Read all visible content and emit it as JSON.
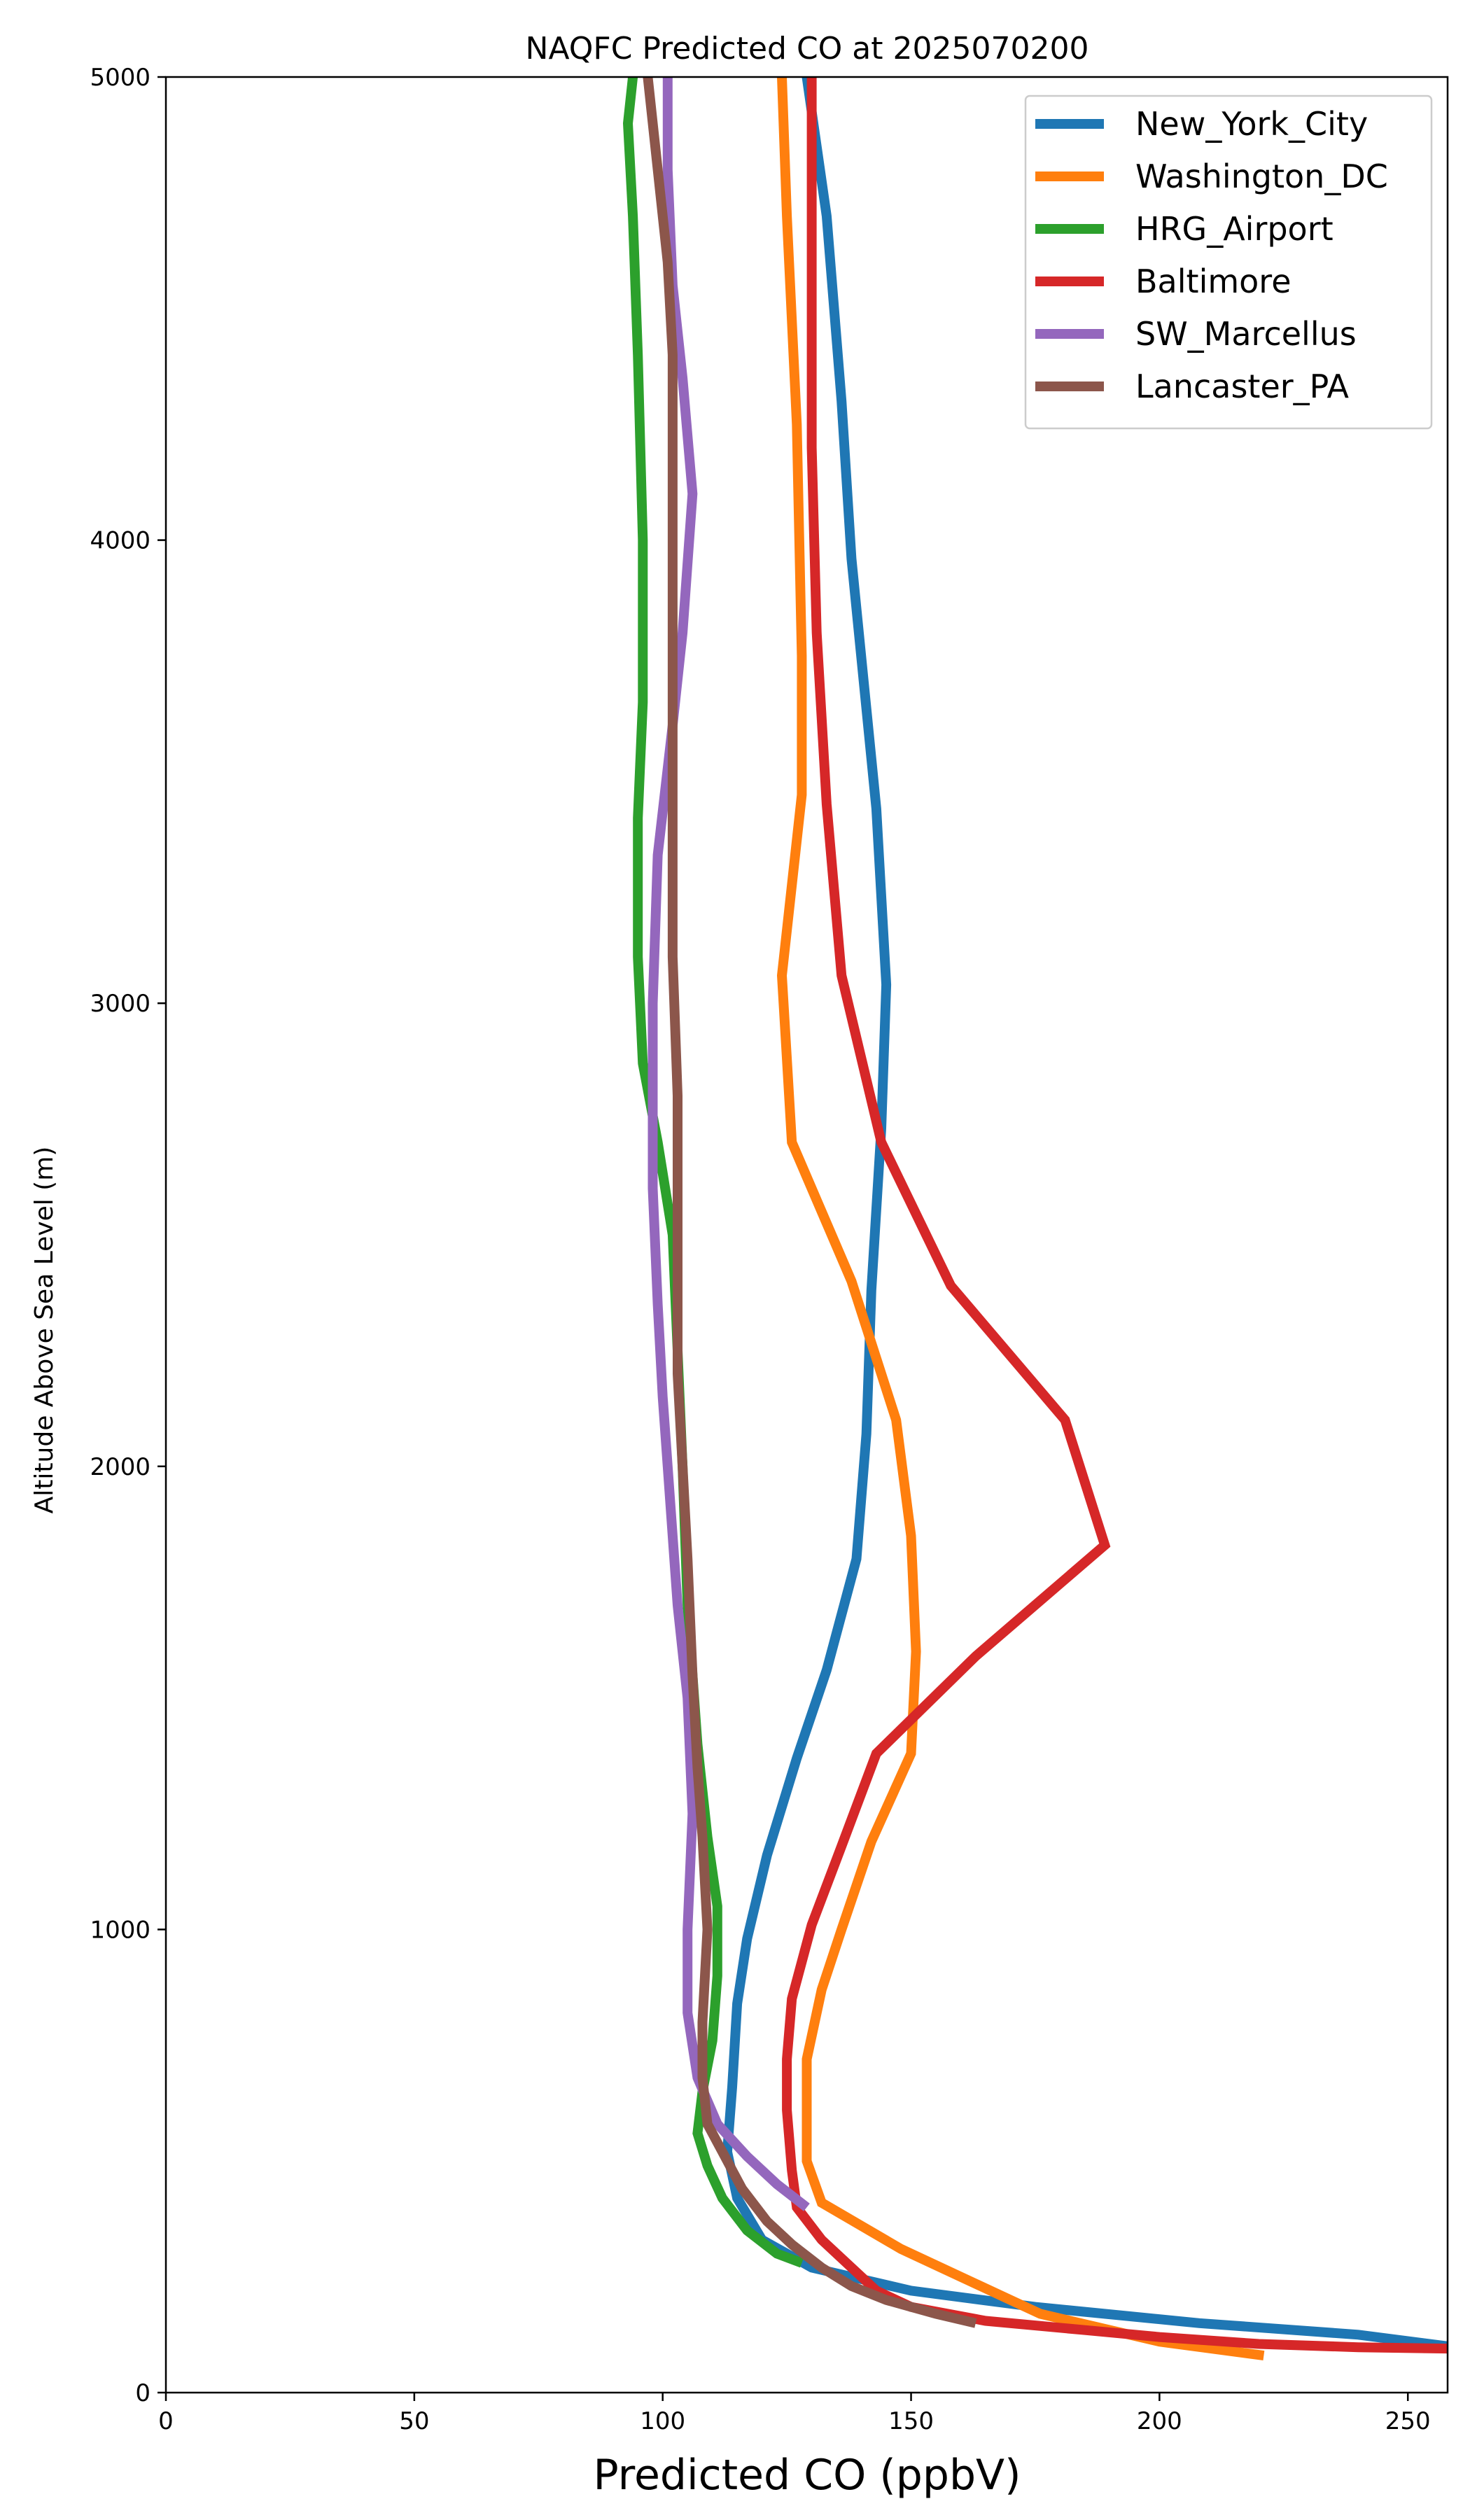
{
  "chart_data": {
    "type": "line",
    "title": "NAQFC Predicted CO at 2025070200",
    "xlabel": "Predicted CO (ppbV)",
    "ylabel": "Altitude Above Sea Level (m)",
    "xlim": [
      0,
      258
    ],
    "ylim": [
      0,
      5000
    ],
    "xticks": [
      0,
      50,
      100,
      150,
      200,
      250
    ],
    "yticks": [
      0,
      1000,
      2000,
      3000,
      4000,
      5000
    ],
    "grid": false,
    "legend_position": "top-right",
    "series": [
      {
        "name": "New_York_City",
        "color": "#1f77b4",
        "points": [
          [
            258,
            100
          ],
          [
            240,
            125
          ],
          [
            208,
            150
          ],
          [
            175,
            185
          ],
          [
            150,
            220
          ],
          [
            130,
            270
          ],
          [
            120,
            330
          ],
          [
            115,
            420
          ],
          [
            113,
            520
          ],
          [
            114,
            660
          ],
          [
            115,
            840
          ],
          [
            117,
            980
          ],
          [
            121,
            1160
          ],
          [
            127,
            1370
          ],
          [
            133,
            1560
          ],
          [
            139,
            1800
          ],
          [
            141,
            2070
          ],
          [
            142,
            2380
          ],
          [
            144,
            2730
          ],
          [
            145,
            3040
          ],
          [
            143,
            3420
          ],
          [
            138,
            3960
          ],
          [
            136,
            4300
          ],
          [
            133,
            4700
          ],
          [
            129,
            5000
          ]
        ]
      },
      {
        "name": "Washington_DC",
        "color": "#ff7f0e",
        "points": [
          [
            221,
            80
          ],
          [
            200,
            110
          ],
          [
            176,
            170
          ],
          [
            160,
            250
          ],
          [
            148,
            310
          ],
          [
            132,
            410
          ],
          [
            129,
            500
          ],
          [
            129,
            720
          ],
          [
            132,
            870
          ],
          [
            136,
            1000
          ],
          [
            142,
            1190
          ],
          [
            150,
            1380
          ],
          [
            151,
            1600
          ],
          [
            150,
            1850
          ],
          [
            147,
            2100
          ],
          [
            138,
            2400
          ],
          [
            126,
            2700
          ],
          [
            124,
            3060
          ],
          [
            128,
            3450
          ],
          [
            128,
            3750
          ],
          [
            127,
            4250
          ],
          [
            125,
            4700
          ],
          [
            124,
            5000
          ]
        ]
      },
      {
        "name": "HRG_Airport",
        "color": "#2ca02c",
        "points": [
          [
            128,
            280
          ],
          [
            123,
            300
          ],
          [
            117,
            350
          ],
          [
            112,
            420
          ],
          [
            109,
            490
          ],
          [
            107,
            560
          ],
          [
            108,
            650
          ],
          [
            110,
            760
          ],
          [
            111,
            900
          ],
          [
            111,
            1050
          ],
          [
            109,
            1200
          ],
          [
            107,
            1400
          ],
          [
            105,
            1700
          ],
          [
            104,
            2000
          ],
          [
            103,
            2250
          ],
          [
            102,
            2500
          ],
          [
            99,
            2700
          ],
          [
            96,
            2870
          ],
          [
            95,
            3100
          ],
          [
            95,
            3400
          ],
          [
            96,
            3650
          ],
          [
            96,
            4000
          ],
          [
            95,
            4400
          ],
          [
            94,
            4700
          ],
          [
            93,
            4900
          ],
          [
            94,
            5000
          ]
        ]
      },
      {
        "name": "Baltimore",
        "color": "#d62728",
        "points": [
          [
            258,
            95
          ],
          [
            240,
            98
          ],
          [
            220,
            105
          ],
          [
            200,
            120
          ],
          [
            185,
            135
          ],
          [
            165,
            155
          ],
          [
            150,
            185
          ],
          [
            143,
            220
          ],
          [
            138,
            270
          ],
          [
            132,
            330
          ],
          [
            127,
            400
          ],
          [
            126,
            480
          ],
          [
            125,
            610
          ],
          [
            125,
            720
          ],
          [
            126,
            850
          ],
          [
            128,
            930
          ],
          [
            130,
            1010
          ],
          [
            136,
            1180
          ],
          [
            143,
            1380
          ],
          [
            163,
            1590
          ],
          [
            189,
            1830
          ],
          [
            181,
            2100
          ],
          [
            158,
            2390
          ],
          [
            144,
            2700
          ],
          [
            136,
            3060
          ],
          [
            133,
            3430
          ],
          [
            131,
            3800
          ],
          [
            130,
            4200
          ],
          [
            130,
            4900
          ],
          [
            130,
            5000
          ]
        ]
      },
      {
        "name": "SW_Marcellus",
        "color": "#9467bd",
        "points": [
          [
            129,
            400
          ],
          [
            123,
            450
          ],
          [
            117,
            510
          ],
          [
            111,
            580
          ],
          [
            107,
            680
          ],
          [
            105,
            820
          ],
          [
            105,
            1000
          ],
          [
            106,
            1250
          ],
          [
            105,
            1500
          ],
          [
            103,
            1700
          ],
          [
            101,
            2000
          ],
          [
            100,
            2150
          ],
          [
            99,
            2350
          ],
          [
            98,
            2600
          ],
          [
            98,
            2850
          ],
          [
            98,
            3000
          ],
          [
            99,
            3320
          ],
          [
            102,
            3600
          ],
          [
            104,
            3800
          ],
          [
            106,
            4100
          ],
          [
            104,
            4350
          ],
          [
            102,
            4550
          ],
          [
            101,
            4800
          ],
          [
            101,
            5000
          ]
        ]
      },
      {
        "name": "Lancaster_PA",
        "color": "#8c564b",
        "points": [
          [
            163,
            150
          ],
          [
            155,
            170
          ],
          [
            145,
            200
          ],
          [
            138,
            230
          ],
          [
            132,
            270
          ],
          [
            126,
            320
          ],
          [
            121,
            370
          ],
          [
            116,
            440
          ],
          [
            112,
            520
          ],
          [
            109,
            580
          ],
          [
            108,
            680
          ],
          [
            108,
            800
          ],
          [
            109,
            1000
          ],
          [
            108,
            1200
          ],
          [
            107,
            1350
          ],
          [
            106,
            1550
          ],
          [
            105,
            1800
          ],
          [
            104,
            2000
          ],
          [
            103,
            2200
          ],
          [
            103,
            2500
          ],
          [
            103,
            2800
          ],
          [
            102,
            3100
          ],
          [
            102,
            3400
          ],
          [
            102,
            3700
          ],
          [
            102,
            4000
          ],
          [
            102,
            4400
          ],
          [
            101,
            4600
          ],
          [
            99,
            4800
          ],
          [
            97,
            5000
          ]
        ]
      }
    ]
  }
}
